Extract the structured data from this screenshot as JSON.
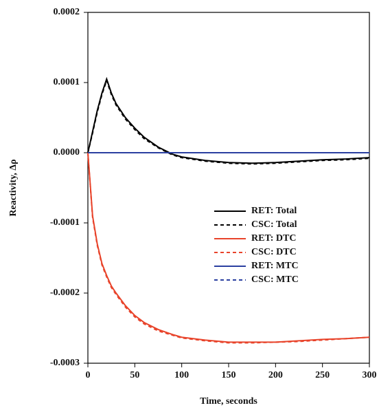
{
  "chart_data": {
    "type": "line",
    "x_label": "Time, seconds",
    "y_label": "Reactivity, Δρ",
    "x": [
      0,
      5,
      10,
      15,
      20,
      25,
      30,
      40,
      50,
      60,
      75,
      90,
      100,
      125,
      150,
      175,
      200,
      225,
      250,
      275,
      300
    ],
    "series": [
      {
        "name": "RET: Total",
        "color": "#000000",
        "linestyle": "solid",
        "values": [
          0,
          3e-05,
          6e-05,
          8.5e-05,
          0.000105,
          8.5e-05,
          7e-05,
          5e-05,
          3.5e-05,
          2.2e-05,
          8e-06,
          -2e-06,
          -6e-06,
          -1.1e-05,
          -1.4e-05,
          -1.5e-05,
          -1.4e-05,
          -1.2e-05,
          -1e-05,
          -9e-06,
          -7e-06
        ]
      },
      {
        "name": "CSC: Total",
        "color": "#000000",
        "linestyle": "dashed",
        "values": [
          0,
          2.8e-05,
          5.8e-05,
          8.3e-05,
          0.000103,
          8.3e-05,
          6.8e-05,
          4.8e-05,
          3.3e-05,
          2e-05,
          7e-06,
          -3e-06,
          -7e-06,
          -1.2e-05,
          -1.5e-05,
          -1.6e-05,
          -1.5e-05,
          -1.3e-05,
          -1.1e-05,
          -1e-05,
          -8e-06
        ]
      },
      {
        "name": "RET: DTC",
        "color": "#e8432a",
        "linestyle": "solid",
        "values": [
          0,
          -9e-05,
          -0.00013,
          -0.000158,
          -0.000175,
          -0.00019,
          -0.0002,
          -0.000218,
          -0.000232,
          -0.000242,
          -0.000252,
          -0.000259,
          -0.000263,
          -0.000267,
          -0.00027,
          -0.00027,
          -0.00027,
          -0.000268,
          -0.000266,
          -0.000265,
          -0.000263
        ]
      },
      {
        "name": "CSC: DTC",
        "color": "#e8432a",
        "linestyle": "dashed",
        "values": [
          0,
          -9.2e-05,
          -0.000132,
          -0.00016,
          -0.000177,
          -0.000192,
          -0.000202,
          -0.00022,
          -0.000234,
          -0.000244,
          -0.000254,
          -0.00026,
          -0.000264,
          -0.000268,
          -0.000271,
          -0.000271,
          -0.00027,
          -0.000269,
          -0.000267,
          -0.000265,
          -0.000263
        ]
      },
      {
        "name": "RET: MTC",
        "color": "#2a3fa0",
        "linestyle": "solid",
        "values": [
          0,
          0,
          0,
          0,
          0,
          0,
          0,
          0,
          0,
          0,
          0,
          0,
          0,
          0,
          0,
          0,
          0,
          0,
          0,
          0,
          0
        ]
      },
      {
        "name": "CSC: MTC",
        "color": "#2a3fa0",
        "linestyle": "dashed",
        "values": [
          0,
          0,
          0,
          0,
          0,
          0,
          0,
          0,
          0,
          0,
          0,
          0,
          0,
          0,
          0,
          0,
          0,
          0,
          0,
          0,
          0
        ]
      }
    ],
    "xlim": [
      0,
      300
    ],
    "xticks": [
      0,
      50,
      100,
      150,
      200,
      250,
      300
    ],
    "ylim": [
      -0.0003,
      0.0002
    ],
    "yticks": [
      {
        "value": -0.0003,
        "label": "-0.0003"
      },
      {
        "value": -0.0002,
        "label": "-0.0002"
      },
      {
        "value": -0.0001,
        "label": "-0.0001"
      },
      {
        "value": 0,
        "label": "0.0000"
      },
      {
        "value": 0.0001,
        "label": "0.0001"
      },
      {
        "value": 0.0002,
        "label": "0.0002"
      }
    ],
    "grid": false,
    "legend": "center"
  }
}
